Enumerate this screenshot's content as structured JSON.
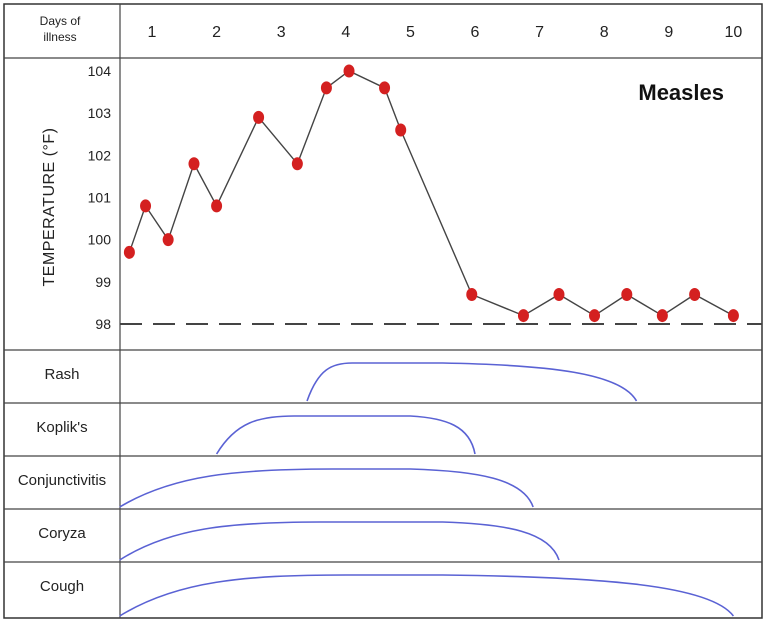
{
  "chart_data": {
    "type": "line",
    "title": "Measles",
    "header_label_line1": "Days of",
    "header_label_line2": "illness",
    "ylabel": "TEMPERATURE (°F)",
    "days": [
      "1",
      "2",
      "3",
      "4",
      "5",
      "6",
      "7",
      "8",
      "9",
      "10"
    ],
    "yticks": [
      "104",
      "103",
      "102",
      "101",
      "100",
      "99",
      "98"
    ],
    "ylim": [
      98,
      104
    ],
    "baseline": 98,
    "grid": false,
    "series": [
      {
        "points": [
          [
            0.65,
            99.7
          ],
          [
            0.9,
            100.8
          ],
          [
            1.25,
            100.0
          ],
          [
            1.65,
            101.8
          ],
          [
            2.0,
            100.8
          ],
          [
            2.65,
            102.9
          ],
          [
            3.25,
            101.8
          ],
          [
            3.7,
            103.6
          ],
          [
            4.05,
            104.0
          ],
          [
            4.6,
            103.6
          ],
          [
            4.85,
            102.6
          ],
          [
            5.95,
            98.7
          ],
          [
            6.75,
            98.2
          ],
          [
            7.3,
            98.7
          ],
          [
            7.85,
            98.2
          ],
          [
            8.35,
            98.7
          ],
          [
            8.9,
            98.2
          ],
          [
            9.4,
            98.7
          ],
          [
            10.0,
            98.2
          ]
        ]
      }
    ],
    "symptoms": [
      {
        "label": "Rash",
        "start": 3.4,
        "peak_start": 4.1,
        "peak_end": 5.5,
        "end": 8.5
      },
      {
        "label": "Koplik's",
        "start": 2.0,
        "peak_start": 3.2,
        "peak_end": 5.0,
        "end": 6.0
      },
      {
        "label": "Conjunctivitis",
        "start": 0.5,
        "peak_start": 3.8,
        "peak_end": 5.0,
        "end": 6.9
      },
      {
        "label": "Coryza",
        "start": 0.5,
        "peak_start": 3.6,
        "peak_end": 5.5,
        "end": 7.3
      },
      {
        "label": "Cough",
        "start": 0.5,
        "peak_start": 4.0,
        "peak_end": 5.5,
        "end": 10.0
      }
    ],
    "colors": {
      "points": "#d42020",
      "line": "#444444",
      "symptom_curves": "#5a62d4"
    }
  }
}
